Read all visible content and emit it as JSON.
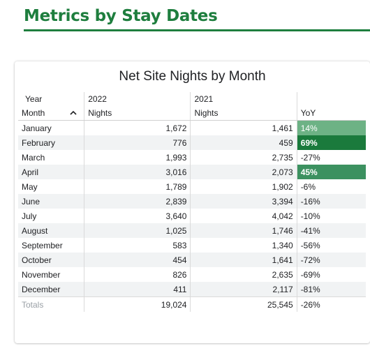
{
  "page": {
    "heading": "Metrics by Stay Dates",
    "accent_color": "#1e7e3e"
  },
  "table_card": {
    "title": "Net Site Nights by Month",
    "year_header_label": "Year",
    "years": [
      "2022",
      "2021"
    ],
    "month_header_label": "Month",
    "metric_header_label": "Nights",
    "yoy_header_label": "YoY",
    "sort_icon": "chevron-up-icon",
    "rows": [
      {
        "month": "January",
        "v2022": "1,672",
        "v2021": "1,461",
        "yoy": "14%",
        "yoy_level": 0.14
      },
      {
        "month": "February",
        "v2022": "776",
        "v2021": "459",
        "yoy": "69%",
        "yoy_level": 0.69
      },
      {
        "month": "March",
        "v2022": "1,993",
        "v2021": "2,735",
        "yoy": "-27%",
        "yoy_level": -0.27
      },
      {
        "month": "April",
        "v2022": "3,016",
        "v2021": "2,073",
        "yoy": "45%",
        "yoy_level": 0.45
      },
      {
        "month": "May",
        "v2022": "1,789",
        "v2021": "1,902",
        "yoy": "-6%",
        "yoy_level": -0.06
      },
      {
        "month": "June",
        "v2022": "2,839",
        "v2021": "3,394",
        "yoy": "-16%",
        "yoy_level": -0.16
      },
      {
        "month": "July",
        "v2022": "3,640",
        "v2021": "4,042",
        "yoy": "-10%",
        "yoy_level": -0.1
      },
      {
        "month": "August",
        "v2022": "1,025",
        "v2021": "1,746",
        "yoy": "-41%",
        "yoy_level": -0.41
      },
      {
        "month": "September",
        "v2022": "583",
        "v2021": "1,340",
        "yoy": "-56%",
        "yoy_level": -0.56
      },
      {
        "month": "October",
        "v2022": "454",
        "v2021": "1,641",
        "yoy": "-72%",
        "yoy_level": -0.72
      },
      {
        "month": "November",
        "v2022": "826",
        "v2021": "2,635",
        "yoy": "-69%",
        "yoy_level": -0.69
      },
      {
        "month": "December",
        "v2022": "411",
        "v2021": "2,117",
        "yoy": "-81%",
        "yoy_level": -0.81
      }
    ],
    "totals": {
      "label": "Totals",
      "v2022": "19,024",
      "v2021": "25,545",
      "yoy": "-26%"
    },
    "colors": {
      "highlight_low": "#6db285",
      "highlight_high": "#1a7a3c",
      "highlight_mid": "#3c9160",
      "alt_row": "#f1f3f4"
    }
  }
}
